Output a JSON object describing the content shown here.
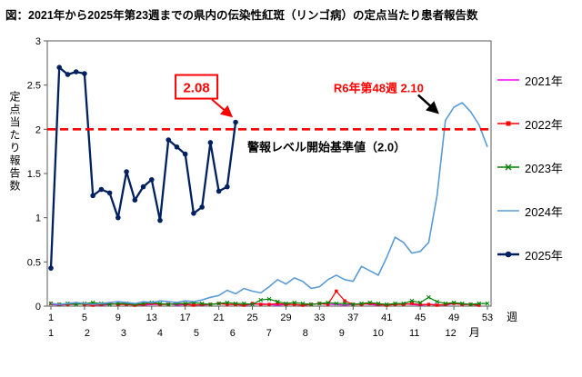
{
  "chart_data": {
    "type": "line",
    "title": "図：2021年から2025年第23週までの県内の伝染性紅斑（リンゴ病）の定点当たり患者報告数",
    "ylabel": "定点当たり報告数",
    "week_axis_label": "週",
    "month_axis_label": "月",
    "ylim": [
      0,
      3
    ],
    "yticks": [
      0,
      0.5,
      1,
      1.5,
      2,
      2.5,
      3
    ],
    "ytick_labels": [
      "0",
      "0.5",
      "1",
      "1.5",
      "2",
      "2.5",
      "3"
    ],
    "week_ticks": [
      1,
      5,
      9,
      13,
      17,
      21,
      25,
      29,
      33,
      37,
      41,
      45,
      49,
      53
    ],
    "month_labels": [
      "1",
      "2",
      "3",
      "4",
      "5",
      "6",
      "7",
      "8",
      "9",
      "10",
      "11",
      "12"
    ],
    "alert_line": {
      "value": 2.0,
      "label": "警報レベル開始基準値（2.0）",
      "color": "#FF0000"
    },
    "annotations": [
      {
        "id": "latest",
        "text": "2.08",
        "series": "2025年",
        "target_week": 23,
        "target_value": 2.08,
        "text_color": "#FF0000",
        "box": true,
        "arrow_color": "#FF0000"
      },
      {
        "id": "r6peak",
        "text": "R6年第48週 2.10",
        "series": "2024年",
        "target_week": 48,
        "target_value": 2.1,
        "text_color": "#FF0000",
        "box": false,
        "arrow_color": "#000000"
      }
    ],
    "legend": {
      "position": "right"
    },
    "series": [
      {
        "name": "2021年",
        "color": "#FF00FF",
        "marker": "none",
        "width": 1.2,
        "values": [
          0.02,
          0.01,
          0.02,
          0.02,
          0.03,
          0.02,
          0.01,
          0.02,
          0.03,
          0.02,
          0.02,
          0.01,
          0.02,
          0.02,
          0.03,
          0.01,
          0.02,
          0.02,
          0.01,
          0.02,
          0.03,
          0.02,
          0.02,
          0.01,
          0.02,
          0.03,
          0.02,
          0.01,
          0.02,
          0.02,
          0.01,
          0.02,
          0.03,
          0.02,
          0.02,
          0.01,
          0.02,
          0.03,
          0.02,
          0.01,
          0.02,
          0.02,
          0.03,
          0.02,
          0.01,
          0.02,
          0.02,
          0.01,
          0.03,
          0.02,
          0.02,
          0.01
        ]
      },
      {
        "name": "2022年",
        "color": "#FF0000",
        "marker": "square",
        "width": 1.2,
        "values": [
          0.03,
          0.02,
          0.02,
          0.03,
          0.02,
          0.01,
          0.02,
          0.03,
          0.02,
          0.02,
          0.01,
          0.02,
          0.03,
          0.02,
          0.02,
          0.03,
          0.02,
          0.01,
          0.02,
          0.02,
          0.03,
          0.02,
          0.02,
          0.01,
          0.03,
          0.02,
          0.02,
          0.03,
          0.02,
          0.02,
          0.01,
          0.02,
          0.03,
          0.02,
          0.17,
          0.06,
          0.02,
          0.02,
          0.03,
          0.02,
          0.01,
          0.02,
          0.02,
          0.03,
          0.02,
          0.02,
          0.01,
          0.02,
          0.03,
          0.02,
          0.02,
          0.01
        ]
      },
      {
        "name": "2023年",
        "color": "#008000",
        "marker": "x",
        "width": 1.2,
        "values": [
          0.03,
          0.02,
          0.03,
          0.02,
          0.03,
          0.04,
          0.03,
          0.02,
          0.03,
          0.03,
          0.02,
          0.03,
          0.04,
          0.03,
          0.02,
          0.03,
          0.03,
          0.04,
          0.03,
          0.02,
          0.03,
          0.04,
          0.03,
          0.03,
          0.02,
          0.07,
          0.08,
          0.05,
          0.03,
          0.04,
          0.03,
          0.02,
          0.03,
          0.04,
          0.03,
          0.03,
          0.02,
          0.03,
          0.04,
          0.03,
          0.02,
          0.03,
          0.03,
          0.06,
          0.04,
          0.1,
          0.05,
          0.03,
          0.04,
          0.03,
          0.02,
          0.03,
          0.03
        ]
      },
      {
        "name": "2024年",
        "color": "#5B9BD5",
        "marker": "none",
        "width": 1.6,
        "values": [
          0.03,
          0.02,
          0.03,
          0.04,
          0.03,
          0.02,
          0.03,
          0.04,
          0.05,
          0.04,
          0.03,
          0.05,
          0.04,
          0.06,
          0.05,
          0.04,
          0.06,
          0.05,
          0.07,
          0.1,
          0.12,
          0.18,
          0.14,
          0.2,
          0.17,
          0.15,
          0.22,
          0.3,
          0.25,
          0.32,
          0.28,
          0.2,
          0.22,
          0.3,
          0.35,
          0.3,
          0.28,
          0.45,
          0.4,
          0.35,
          0.55,
          0.78,
          0.72,
          0.6,
          0.62,
          0.72,
          1.25,
          2.1,
          2.25,
          2.3,
          2.2,
          2.05,
          1.8
        ]
      },
      {
        "name": "2025年",
        "color": "#002060",
        "marker": "circle",
        "width": 2.3,
        "values": [
          0.43,
          2.7,
          2.62,
          2.65,
          2.63,
          1.25,
          1.32,
          1.28,
          1.0,
          1.52,
          1.2,
          1.35,
          1.43,
          0.97,
          1.88,
          1.8,
          1.72,
          1.05,
          1.12,
          1.85,
          1.3,
          1.35,
          2.08
        ]
      }
    ]
  }
}
